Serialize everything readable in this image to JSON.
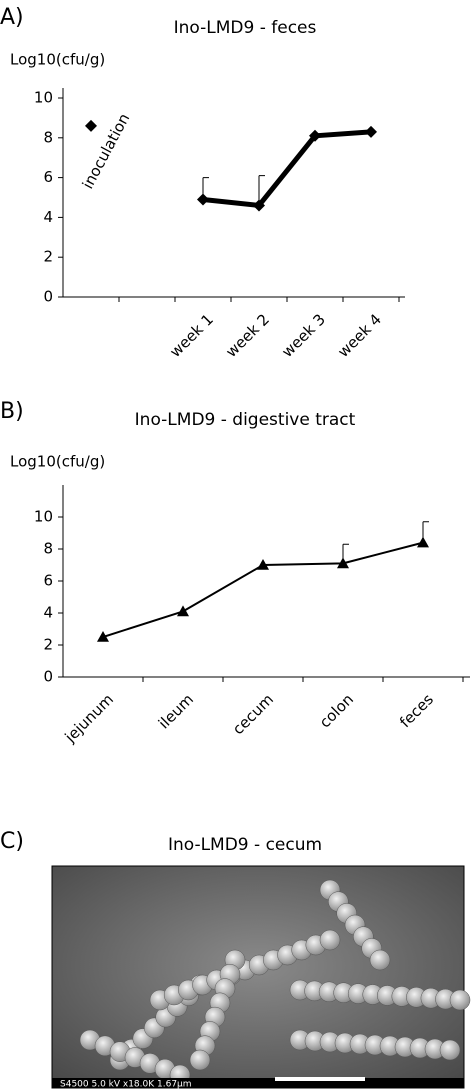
{
  "chart_data": [
    {
      "type": "line",
      "panel_label": "A)",
      "title": "Ino-LMD9 - feces",
      "y_label": "Log10(cfu/g)",
      "categories": [
        null,
        null,
        "week 1",
        "week 2",
        "week 3",
        "week 4"
      ],
      "series": [
        {
          "color": "#000000",
          "values": [
            null,
            null,
            4.9,
            4.6,
            8.1,
            8.3
          ],
          "errors": [
            null,
            null,
            1.1,
            1.5,
            null,
            null
          ]
        },
        {
          "name": "inoculation",
          "color": "#000000",
          "values": [
            8.6,
            null,
            null,
            null,
            null,
            null
          ]
        }
      ],
      "marker": "diamond",
      "ylim": [
        0,
        10
      ],
      "yticks": [
        0,
        2,
        4,
        6,
        8,
        10
      ]
    },
    {
      "type": "line",
      "panel_label": "B)",
      "title": "Ino-LMD9 - digestive tract",
      "y_label": "Log10(cfu/g)",
      "categories": [
        "jejunum",
        "ileum",
        "cecum",
        "colon",
        "feces"
      ],
      "series": [
        {
          "color": "#000000",
          "values": [
            2.5,
            4.1,
            7.0,
            7.1,
            8.4
          ],
          "errors": [
            null,
            null,
            null,
            1.2,
            1.3
          ]
        }
      ],
      "marker": "triangle",
      "ylim": [
        0,
        12
      ],
      "yticks": [
        0,
        2,
        4,
        6,
        8,
        10
      ]
    }
  ],
  "image_panel": {
    "panel_label": "C)",
    "title": "Ino-LMD9 - cecum",
    "caption": "S4500   5.0 kV  x18.0K  1.67μm"
  }
}
